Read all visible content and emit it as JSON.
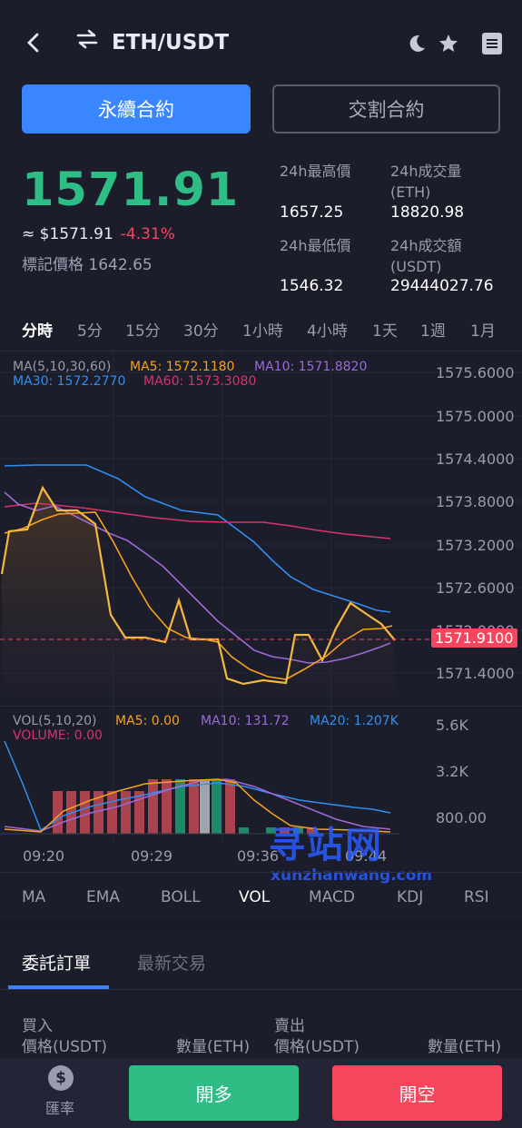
{
  "header": {
    "title": "ETH/USDT"
  },
  "tabs": {
    "perpetual": "永續合約",
    "delivery": "交割合約"
  },
  "ticker": {
    "last_price": "1571.91",
    "usd_price": "≈ $1571.91",
    "change": "-4.31%",
    "mark_price": "標記價格 1642.65",
    "high_label": "24h最高價",
    "high_value": "1657.25",
    "low_label": "24h最低價",
    "low_value": "1546.32",
    "vol_label": "24h成交量\n(ETH)",
    "vol_value": "18820.98",
    "amount_label": "24h成交額\n(USDT)",
    "amount_value": "29444027.76"
  },
  "timeframes": [
    "分時",
    "5分",
    "15分",
    "30分",
    "1小時",
    "4小時",
    "1天",
    "1週",
    "1月"
  ],
  "price_chart": {
    "legend_ma": "MA(5,10,30,60)",
    "ma5": "MA5: 1572.1180",
    "ma10": "MA10: 1571.8820",
    "ma30": "MA30: 1572.2770",
    "ma60": "MA60: 1573.3080",
    "y_ticks": [
      "1575.6000",
      "1575.0000",
      "1574.4000",
      "1573.8000",
      "1573.2000",
      "1572.6000",
      "1572.0000",
      "1571.4000"
    ],
    "current_label": "1571.9100"
  },
  "volume_chart": {
    "legend_vol": "VOL(5,10,20)",
    "ma5": "MA5: 0.00",
    "ma10": "MA10: 131.72",
    "ma20": "MA20: 1.207K",
    "volume": "VOLUME: 0.00",
    "y_ticks": [
      "5.6K",
      "3.2K",
      "800.00"
    ],
    "x_ticks": [
      "09:20",
      "09:29",
      "09:36",
      "09:44"
    ]
  },
  "chart_data": {
    "type": "line",
    "y_range": [
      1571.4,
      1575.6
    ],
    "series": [
      {
        "name": "MA5",
        "color": "#f7a21b"
      },
      {
        "name": "MA10",
        "color": "#9c6ad8"
      },
      {
        "name": "MA30",
        "color": "#2f8ff0"
      },
      {
        "name": "MA60",
        "color": "#d6336c"
      }
    ]
  },
  "indicators": [
    "MA",
    "EMA",
    "BOLL",
    "VOL",
    "MACD",
    "KDJ",
    "RSI"
  ],
  "orders": {
    "tab_orders": "委託訂單",
    "tab_trades": "最新交易",
    "buy": "買入",
    "sell": "賣出",
    "buy_price": "價格(USDT)",
    "buy_qty": "數量(ETH)",
    "sell_price": "價格(USDT)",
    "sell_qty": "數量(ETH)"
  },
  "bottom": {
    "rate_label": "匯率",
    "long": "開多",
    "short": "開空"
  },
  "watermark": {
    "cn": "寻站网",
    "en": "xunzhanwang.com"
  },
  "colors": {
    "up": "#2ebd85",
    "down": "#f6465d",
    "accent": "#3a86ff",
    "bg": "#1c1d2b"
  }
}
